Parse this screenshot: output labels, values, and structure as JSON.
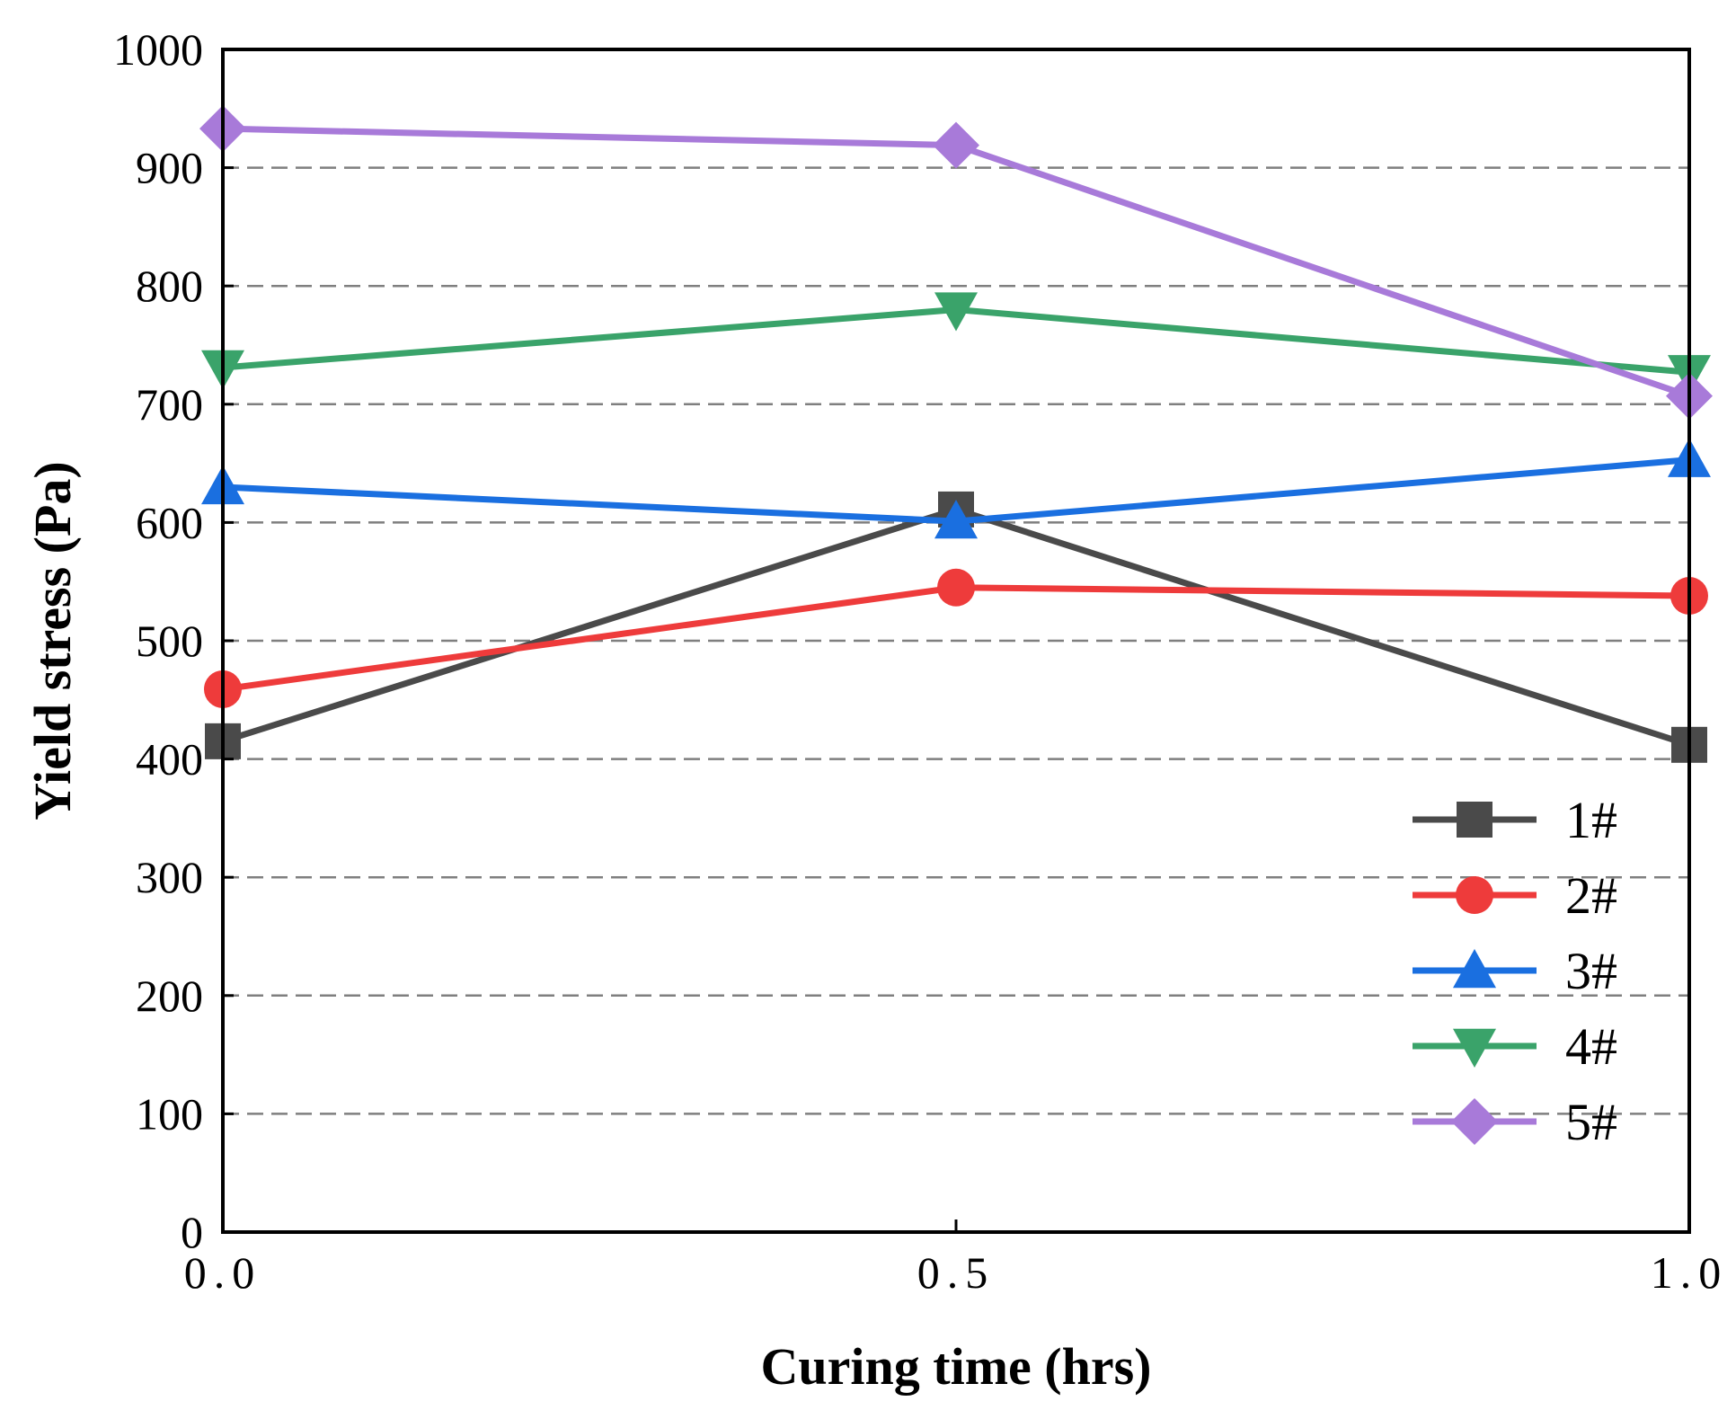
{
  "chart_data": {
    "type": "line",
    "title": "",
    "xlabel": "Curing time (hrs)",
    "ylabel": "Yield stress (Pa)",
    "x": [
      0.0,
      0.5,
      1.0
    ],
    "xticks": [
      "0.0",
      "0.5",
      "1.0"
    ],
    "xlim": [
      0,
      1
    ],
    "yticks": [
      "0",
      "100",
      "200",
      "300",
      "400",
      "500",
      "600",
      "700",
      "800",
      "900",
      "1000"
    ],
    "ylim": [
      0,
      1000
    ],
    "grid": "horizontal dashed",
    "legend_position": "lower-right",
    "series": [
      {
        "name": "1#",
        "color": "#4a4a4a",
        "marker": "square",
        "values": [
          415,
          611,
          412
        ]
      },
      {
        "name": "2#",
        "color": "#ee3b3b",
        "marker": "circle",
        "values": [
          459,
          545,
          538
        ]
      },
      {
        "name": "3#",
        "color": "#1a6fe0",
        "marker": "triangle-up",
        "values": [
          630,
          601,
          653
        ]
      },
      {
        "name": "4#",
        "color": "#3aa36a",
        "marker": "triangle-down",
        "values": [
          731,
          780,
          727
        ]
      },
      {
        "name": "5#",
        "color": "#a87ad9",
        "marker": "diamond",
        "values": [
          933,
          919,
          707
        ]
      }
    ]
  }
}
